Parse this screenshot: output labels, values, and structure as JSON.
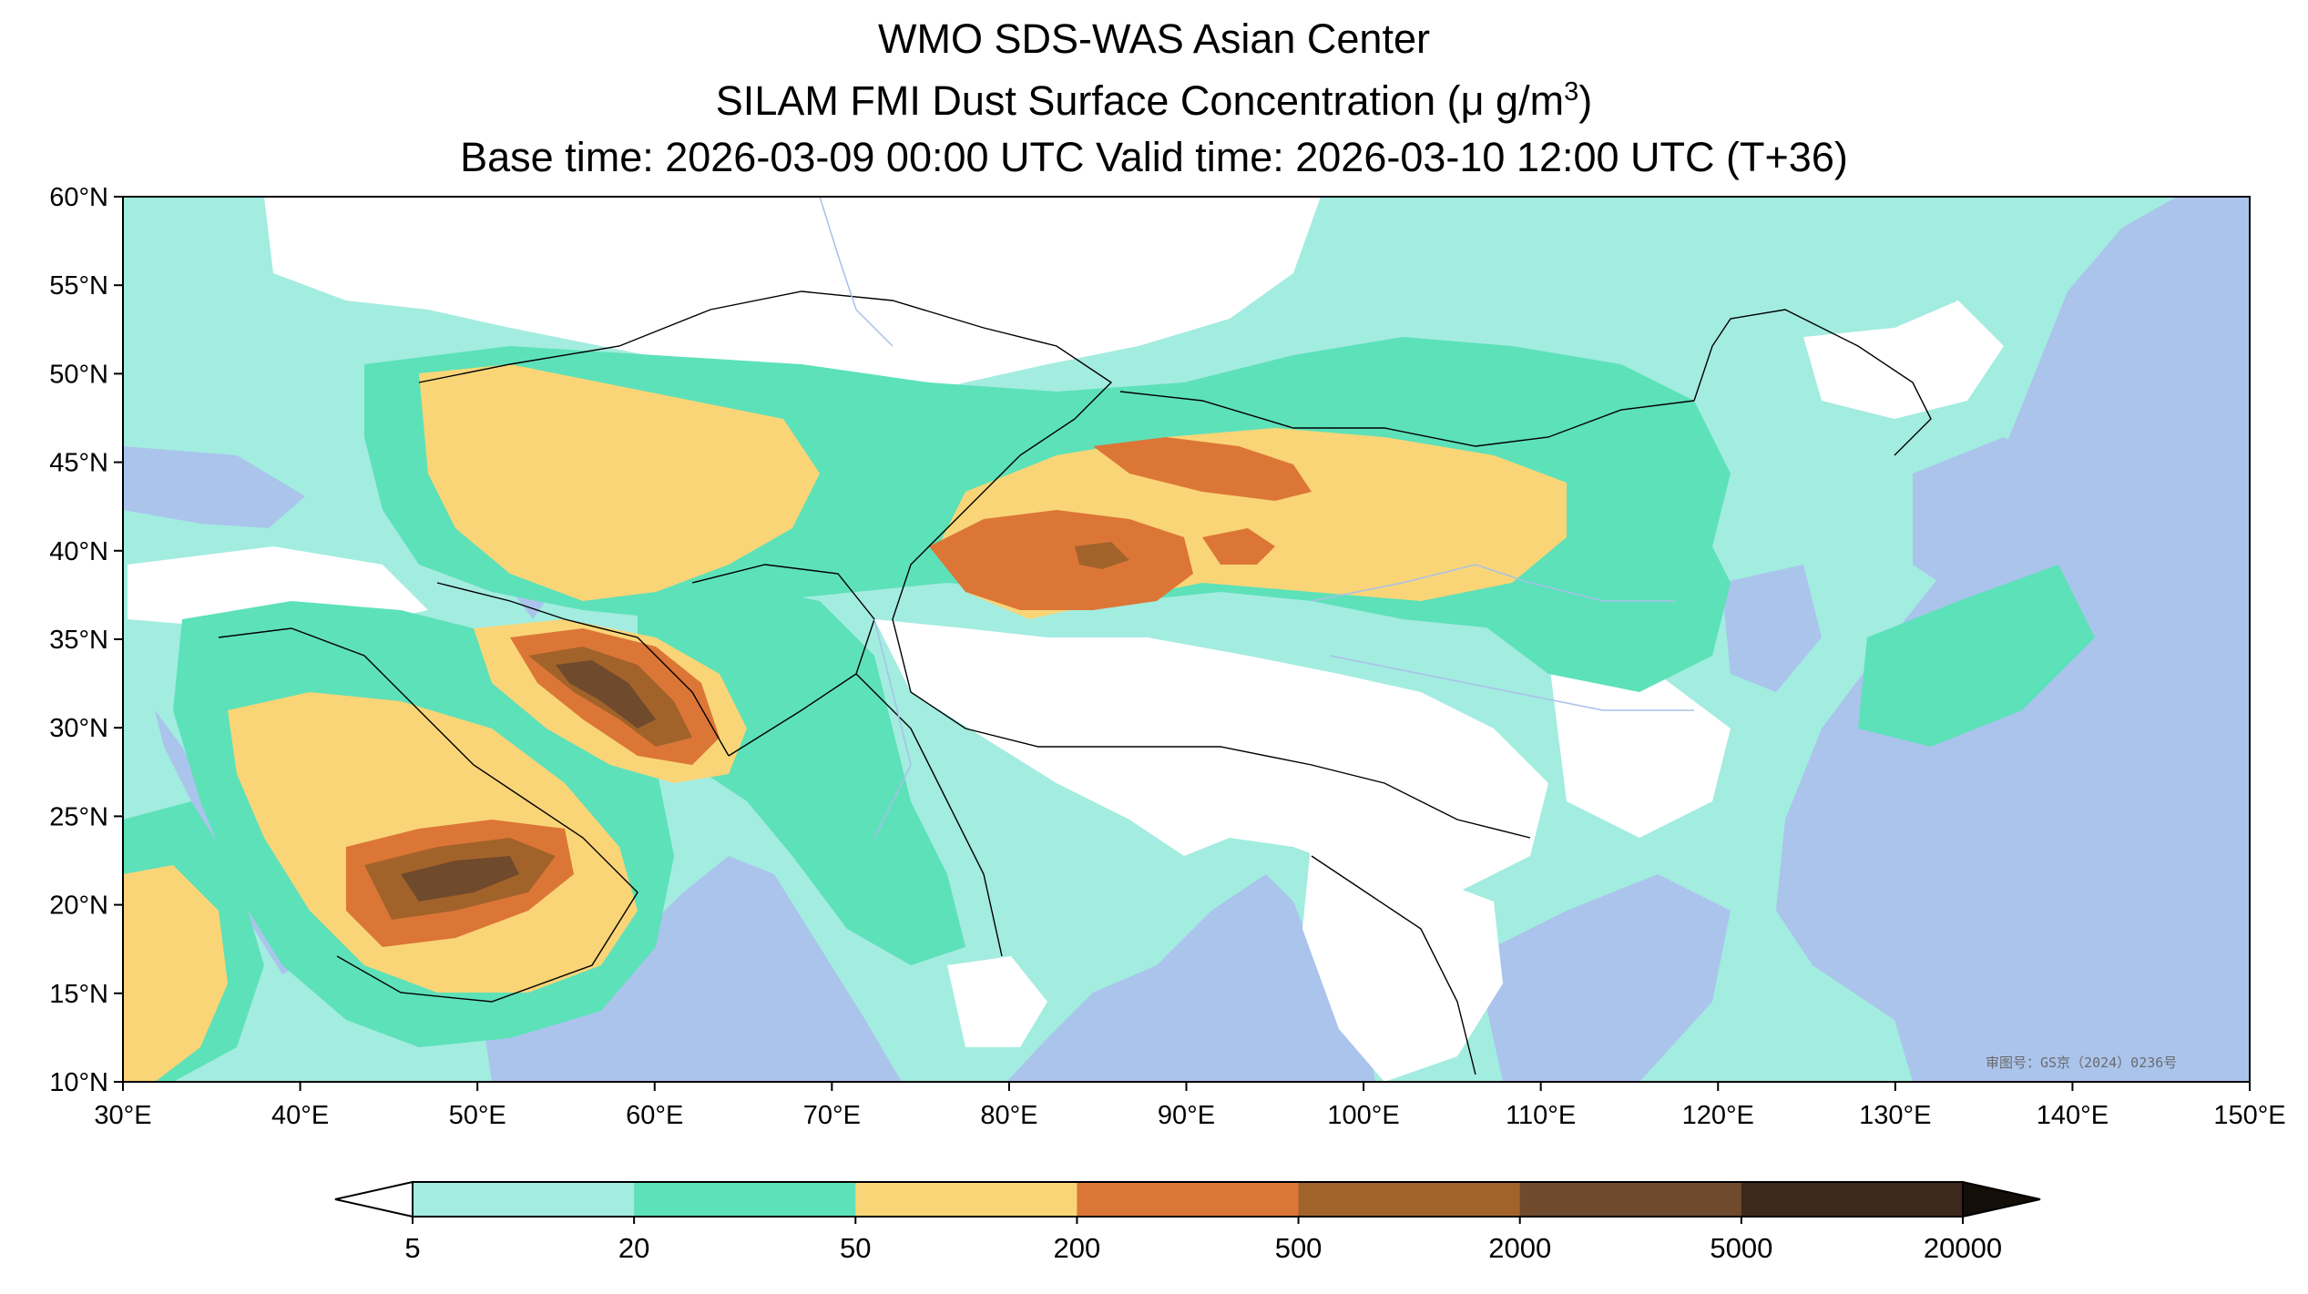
{
  "title": {
    "line1": "WMO SDS-WAS Asian Center",
    "line2_prefix": "SILAM FMI Dust Surface Concentration (",
    "line2_unit_main": "μ g/m",
    "line2_unit_sup": "3",
    "line2_suffix": ")",
    "line3": "Base time: 2026-03-09 00:00 UTC Valid time: 2026-03-10 12:00 UTC (T+36)"
  },
  "map": {
    "extent": {
      "lon": [
        30,
        150
      ],
      "lat": [
        10,
        60
      ]
    },
    "lat_ticks": [
      "10°N",
      "15°N",
      "20°N",
      "25°N",
      "30°N",
      "35°N",
      "40°N",
      "45°N",
      "50°N",
      "55°N",
      "60°N"
    ],
    "lon_ticks": [
      "30°E",
      "40°E",
      "50°E",
      "60°E",
      "70°E",
      "80°E",
      "90°E",
      "100°E",
      "110°E",
      "120°E",
      "130°E",
      "140°E",
      "150°E"
    ],
    "watermark": "审图号：GS京（2024）0236号",
    "colors": {
      "ocean": "#aac4ec",
      "land_nodata": "#ffffff",
      "border": "#000000",
      "river": "#a8c0e8"
    }
  },
  "colorbar": {
    "levels": [
      "5",
      "20",
      "50",
      "200",
      "500",
      "2000",
      "5000",
      "20000"
    ],
    "colors": [
      "#a3ece0",
      "#5de1b9",
      "#f9d577",
      "#dc7637",
      "#a2632a",
      "#6f4a2d",
      "#3d281b"
    ],
    "under_color": "#ffffff",
    "over_color": "#130e08",
    "extend": "both"
  }
}
